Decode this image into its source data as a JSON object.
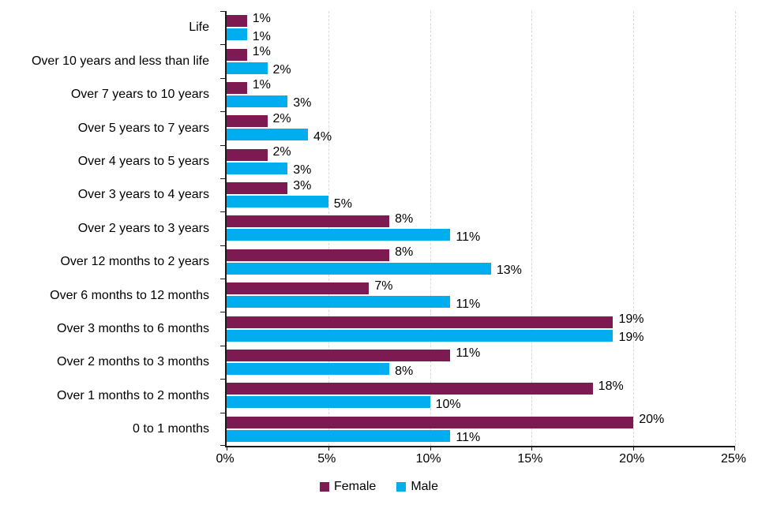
{
  "chart_data": {
    "type": "bar",
    "orientation": "horizontal",
    "title": "",
    "xlabel": "",
    "ylabel": "",
    "xlim": [
      0,
      25
    ],
    "grid": "vertical-dashed",
    "gridline_color": "#d9d9d9",
    "axis_color": "#1a1a1a",
    "legend_position": "bottom-center",
    "categories": [
      "Life",
      "Over 10 years and less than life",
      "Over 7 years to 10 years",
      "Over 5 years to 7 years",
      "Over 4 years to 5 years",
      "Over 3 years to 4 years",
      "Over 2 years to 3 years",
      "Over 12 months to 2 years",
      "Over 6 months to 12 months",
      "Over 3 months to 6 months",
      "Over 2 months to 3 months",
      "Over 1 months to 2 months",
      "0 to 1 months"
    ],
    "series": [
      {
        "name": "Female",
        "color": "#7d1a52",
        "values": [
          1,
          1,
          1,
          2,
          2,
          3,
          8,
          8,
          7,
          19,
          11,
          18,
          20
        ],
        "labels": [
          "1%",
          "1%",
          "1%",
          "2%",
          "2%",
          "3%",
          "8%",
          "8%",
          "7%",
          "19%",
          "11%",
          "18%",
          "20%"
        ]
      },
      {
        "name": "Male",
        "color": "#00aeef",
        "values": [
          1,
          2,
          3,
          4,
          3,
          5,
          11,
          13,
          11,
          19,
          8,
          10,
          11
        ],
        "labels": [
          "1%",
          "2%",
          "3%",
          "4%",
          "3%",
          "5%",
          "11%",
          "13%",
          "11%",
          "19%",
          "8%",
          "10%",
          "11%"
        ]
      }
    ],
    "x_ticks": [
      "0%",
      "5%",
      "10%",
      "15%",
      "20%",
      "25%"
    ]
  }
}
